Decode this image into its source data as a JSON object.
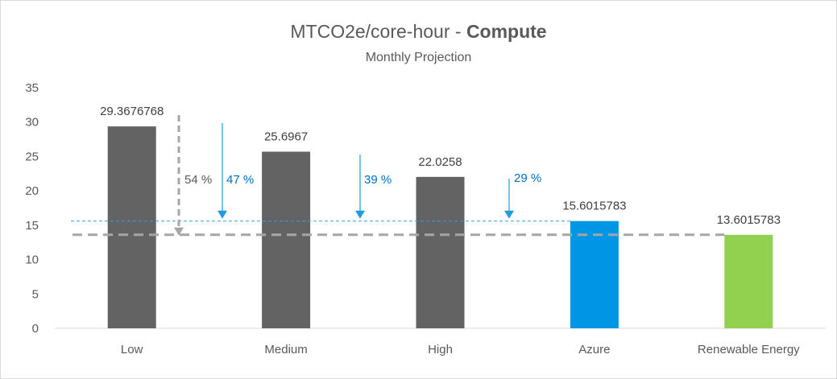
{
  "chart_data": {
    "type": "bar",
    "title_main": "MTCO2e/core-hour - ",
    "title_bold": "Compute",
    "subtitle": "Monthly Projection",
    "categories": [
      "Low",
      "Medium",
      "High",
      "Azure",
      "Renewable Energy"
    ],
    "values": [
      29.3676768,
      25.6967,
      22.0258,
      15.6015783,
      13.6015783
    ],
    "data_labels": [
      "29.3676768",
      "25.6967",
      "22.0258",
      "15.6015783",
      "13.6015783"
    ],
    "colors": [
      "#636363",
      "#636363",
      "#636363",
      "#0096e6",
      "#92d050"
    ],
    "ylim": [
      0,
      35
    ],
    "yticks": [
      "0",
      "5",
      "10",
      "15",
      "20",
      "25",
      "30",
      "35"
    ],
    "reference_lines": [
      {
        "value": 15.6015783,
        "style": "dashed-thin",
        "color": "#29a3e6"
      },
      {
        "value": 13.6015783,
        "style": "dashed-thick",
        "color": "#a6a6a6"
      }
    ],
    "annotations": [
      {
        "text": "54 %",
        "color": "#595959"
      },
      {
        "text": "47 %",
        "color": "#0070c0"
      },
      {
        "text": "39 %",
        "color": "#0070c0"
      },
      {
        "text": "29 %",
        "color": "#0070c0"
      }
    ],
    "grid": false,
    "legend": "none"
  }
}
